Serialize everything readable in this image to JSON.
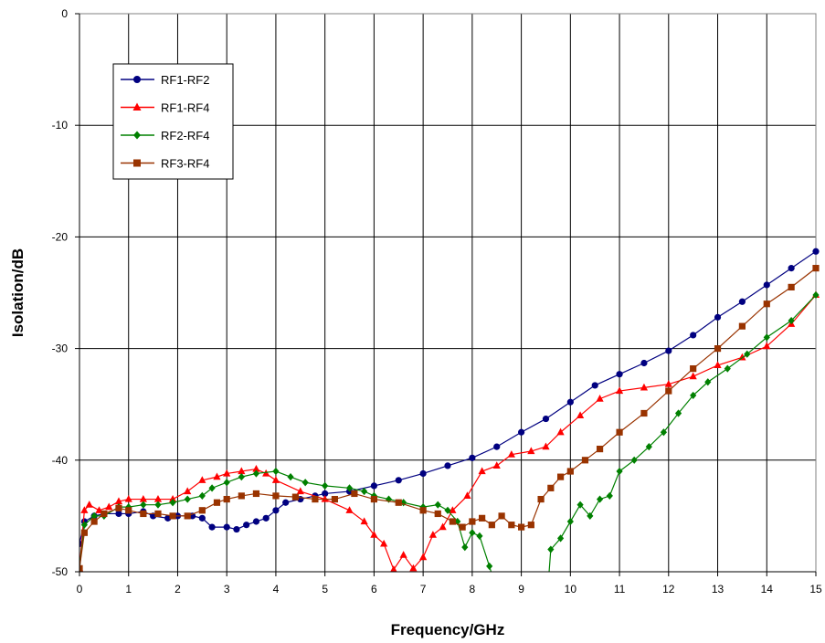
{
  "chart_data": {
    "type": "line",
    "title": "",
    "xlabel": "Frequency/GHz",
    "ylabel": "Isolation/dB",
    "xlim": [
      0,
      15
    ],
    "ylim": [
      -50,
      0
    ],
    "x_ticks": [
      "0",
      "1",
      "2",
      "3",
      "4",
      "5",
      "6",
      "7",
      "8",
      "9",
      "10",
      "11",
      "12",
      "13",
      "14",
      "15"
    ],
    "y_ticks": [
      "0",
      "-10",
      "-20",
      "-30",
      "-40",
      "-50"
    ],
    "grid": true,
    "legend_position": "top-left",
    "series": [
      {
        "name": "RF1-RF2",
        "color": "#000080",
        "marker": "circle",
        "points": [
          [
            0,
            -47.5
          ],
          [
            0.1,
            -45.5
          ],
          [
            0.3,
            -45.0
          ],
          [
            0.5,
            -44.8
          ],
          [
            0.8,
            -44.8
          ],
          [
            1.0,
            -44.8
          ],
          [
            1.3,
            -44.6
          ],
          [
            1.5,
            -45.0
          ],
          [
            1.8,
            -45.2
          ],
          [
            2.0,
            -45.0
          ],
          [
            2.3,
            -45.0
          ],
          [
            2.5,
            -45.2
          ],
          [
            2.7,
            -46.0
          ],
          [
            3.0,
            -46.0
          ],
          [
            3.2,
            -46.2
          ],
          [
            3.4,
            -45.8
          ],
          [
            3.6,
            -45.5
          ],
          [
            3.8,
            -45.2
          ],
          [
            4.0,
            -44.5
          ],
          [
            4.2,
            -43.8
          ],
          [
            4.5,
            -43.5
          ],
          [
            4.8,
            -43.2
          ],
          [
            5.0,
            -43.0
          ],
          [
            5.5,
            -42.8
          ],
          [
            6.0,
            -42.3
          ],
          [
            6.5,
            -41.8
          ],
          [
            7.0,
            -41.2
          ],
          [
            7.5,
            -40.5
          ],
          [
            8.0,
            -39.8
          ],
          [
            8.5,
            -38.8
          ],
          [
            9.0,
            -37.5
          ],
          [
            9.5,
            -36.3
          ],
          [
            10.0,
            -34.8
          ],
          [
            10.5,
            -33.3
          ],
          [
            11.0,
            -32.3
          ],
          [
            11.5,
            -31.3
          ],
          [
            12.0,
            -30.2
          ],
          [
            12.5,
            -28.8
          ],
          [
            13.0,
            -27.2
          ],
          [
            13.5,
            -25.8
          ],
          [
            14.0,
            -24.3
          ],
          [
            14.5,
            -22.8
          ],
          [
            15.0,
            -21.3
          ]
        ]
      },
      {
        "name": "RF1-RF4",
        "color": "#ff0000",
        "marker": "triangle",
        "points": [
          [
            0,
            -49.7
          ],
          [
            0.1,
            -44.5
          ],
          [
            0.2,
            -44.0
          ],
          [
            0.4,
            -44.5
          ],
          [
            0.6,
            -44.2
          ],
          [
            0.8,
            -43.7
          ],
          [
            1.0,
            -43.5
          ],
          [
            1.3,
            -43.5
          ],
          [
            1.6,
            -43.5
          ],
          [
            1.9,
            -43.5
          ],
          [
            2.2,
            -42.8
          ],
          [
            2.5,
            -41.8
          ],
          [
            2.8,
            -41.5
          ],
          [
            3.0,
            -41.2
          ],
          [
            3.3,
            -41.0
          ],
          [
            3.6,
            -40.8
          ],
          [
            3.8,
            -41.2
          ],
          [
            4.0,
            -41.8
          ],
          [
            4.5,
            -42.8
          ],
          [
            5.0,
            -43.5
          ],
          [
            5.5,
            -44.5
          ],
          [
            5.8,
            -45.5
          ],
          [
            6.0,
            -46.7
          ],
          [
            6.2,
            -47.5
          ],
          [
            6.4,
            -49.8
          ],
          [
            6.6,
            -48.5
          ],
          [
            6.8,
            -49.7
          ],
          [
            7.0,
            -48.7
          ],
          [
            7.2,
            -46.7
          ],
          [
            7.4,
            -46.0
          ],
          [
            7.6,
            -44.5
          ],
          [
            7.9,
            -43.2
          ],
          [
            8.2,
            -41.0
          ],
          [
            8.5,
            -40.5
          ],
          [
            8.8,
            -39.5
          ],
          [
            9.2,
            -39.2
          ],
          [
            9.5,
            -38.8
          ],
          [
            9.8,
            -37.5
          ],
          [
            10.2,
            -36.0
          ],
          [
            10.6,
            -34.5
          ],
          [
            11.0,
            -33.8
          ],
          [
            11.5,
            -33.5
          ],
          [
            12.0,
            -33.2
          ],
          [
            12.5,
            -32.5
          ],
          [
            13.0,
            -31.5
          ],
          [
            13.5,
            -30.8
          ],
          [
            14.0,
            -29.8
          ],
          [
            14.5,
            -27.8
          ],
          [
            15.0,
            -25.2
          ]
        ]
      },
      {
        "name": "RF2-RF4",
        "color": "#008000",
        "marker": "diamond",
        "points": [
          [
            0,
            -49.7
          ],
          [
            0.1,
            -45.8
          ],
          [
            0.3,
            -45.0
          ],
          [
            0.5,
            -45.0
          ],
          [
            0.8,
            -44.2
          ],
          [
            1.0,
            -44.2
          ],
          [
            1.3,
            -44.0
          ],
          [
            1.6,
            -44.0
          ],
          [
            1.9,
            -43.8
          ],
          [
            2.2,
            -43.5
          ],
          [
            2.5,
            -43.2
          ],
          [
            2.7,
            -42.5
          ],
          [
            3.0,
            -42.0
          ],
          [
            3.3,
            -41.5
          ],
          [
            3.6,
            -41.2
          ],
          [
            4.0,
            -41.0
          ],
          [
            4.3,
            -41.5
          ],
          [
            4.6,
            -42.0
          ],
          [
            5.0,
            -42.3
          ],
          [
            5.5,
            -42.5
          ],
          [
            5.8,
            -42.8
          ],
          [
            6.0,
            -43.2
          ],
          [
            6.3,
            -43.5
          ],
          [
            6.6,
            -43.8
          ],
          [
            7.0,
            -44.2
          ],
          [
            7.3,
            -44.0
          ],
          [
            7.5,
            -44.5
          ],
          [
            7.7,
            -45.5
          ],
          [
            7.85,
            -47.8
          ],
          [
            8.0,
            -46.5
          ],
          [
            8.15,
            -46.8
          ],
          [
            8.35,
            -49.5
          ],
          [
            8.45,
            -51.0
          ],
          [
            9.55,
            -51.0
          ],
          [
            9.6,
            -48.0
          ],
          [
            9.8,
            -47.0
          ],
          [
            10.0,
            -45.5
          ],
          [
            10.2,
            -44.0
          ],
          [
            10.4,
            -45.0
          ],
          [
            10.6,
            -43.5
          ],
          [
            10.8,
            -43.2
          ],
          [
            11.0,
            -41.0
          ],
          [
            11.3,
            -40.0
          ],
          [
            11.6,
            -38.8
          ],
          [
            11.9,
            -37.5
          ],
          [
            12.2,
            -35.8
          ],
          [
            12.5,
            -34.2
          ],
          [
            12.8,
            -33.0
          ],
          [
            13.2,
            -31.8
          ],
          [
            13.6,
            -30.5
          ],
          [
            14.0,
            -29.0
          ],
          [
            14.5,
            -27.5
          ],
          [
            15.0,
            -25.2
          ]
        ]
      },
      {
        "name": "RF3-RF4",
        "color": "#993300",
        "marker": "square",
        "points": [
          [
            0,
            -49.7
          ],
          [
            0.1,
            -46.5
          ],
          [
            0.3,
            -45.5
          ],
          [
            0.5,
            -44.8
          ],
          [
            0.8,
            -44.3
          ],
          [
            1.0,
            -44.5
          ],
          [
            1.3,
            -44.8
          ],
          [
            1.6,
            -44.8
          ],
          [
            1.9,
            -45.0
          ],
          [
            2.2,
            -45.0
          ],
          [
            2.5,
            -44.5
          ],
          [
            2.8,
            -43.8
          ],
          [
            3.0,
            -43.5
          ],
          [
            3.3,
            -43.2
          ],
          [
            3.6,
            -43.0
          ],
          [
            4.0,
            -43.2
          ],
          [
            4.4,
            -43.3
          ],
          [
            4.8,
            -43.5
          ],
          [
            5.2,
            -43.5
          ],
          [
            5.6,
            -43.0
          ],
          [
            6.0,
            -43.5
          ],
          [
            6.5,
            -43.8
          ],
          [
            7.0,
            -44.5
          ],
          [
            7.3,
            -44.8
          ],
          [
            7.6,
            -45.5
          ],
          [
            7.8,
            -46.0
          ],
          [
            8.0,
            -45.5
          ],
          [
            8.2,
            -45.2
          ],
          [
            8.4,
            -45.8
          ],
          [
            8.6,
            -45.0
          ],
          [
            8.8,
            -45.8
          ],
          [
            9.0,
            -46.0
          ],
          [
            9.2,
            -45.8
          ],
          [
            9.4,
            -43.5
          ],
          [
            9.6,
            -42.5
          ],
          [
            9.8,
            -41.5
          ],
          [
            10.0,
            -41.0
          ],
          [
            10.3,
            -40.0
          ],
          [
            10.6,
            -39.0
          ],
          [
            11.0,
            -37.5
          ],
          [
            11.5,
            -35.8
          ],
          [
            12.0,
            -33.8
          ],
          [
            12.5,
            -31.8
          ],
          [
            13.0,
            -30.0
          ],
          [
            13.5,
            -28.0
          ],
          [
            14.0,
            -26.0
          ],
          [
            14.5,
            -24.5
          ],
          [
            15.0,
            -22.8
          ]
        ]
      }
    ]
  }
}
